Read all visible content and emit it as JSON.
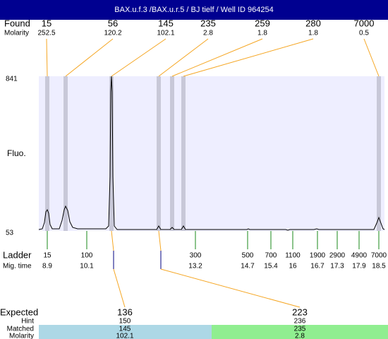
{
  "header": {
    "title": "BAX.u.f.3 /BAX.u.r.5 / BJ tielf / Well ID 964254"
  },
  "found": {
    "label": "Found",
    "sublabel": "Molarity",
    "peaks": [
      {
        "size": "15",
        "molarity": "252.5"
      },
      {
        "size": "56",
        "molarity": "120.2"
      },
      {
        "size": "145",
        "molarity": "102.1"
      },
      {
        "size": "235",
        "molarity": "2.8"
      },
      {
        "size": "259",
        "molarity": "1.8"
      },
      {
        "size": "280",
        "molarity": "1.8"
      },
      {
        "size": "7000",
        "molarity": "0.5"
      }
    ]
  },
  "plot": {
    "ylabel": "Fluo.",
    "ymax": "841",
    "ymin": "53"
  },
  "ladder": {
    "label": "Ladder",
    "sublabel": "Mig. time",
    "items": [
      {
        "size": "15",
        "time": "8.9"
      },
      {
        "size": "100",
        "time": "10.1"
      },
      {
        "size": "300",
        "time": "13.2"
      },
      {
        "size": "500",
        "time": "14.7"
      },
      {
        "size": "700",
        "time": "15.4"
      },
      {
        "size": "1100",
        "time": "16"
      },
      {
        "size": "1900",
        "time": "16.7"
      },
      {
        "size": "2900",
        "time": "17.3"
      },
      {
        "size": "4900",
        "time": "17.9"
      },
      {
        "size": "7000",
        "time": "18.5"
      }
    ]
  },
  "expected": {
    "label": "Expected",
    "hint_label": "Hint",
    "matched_label": "Matched",
    "molarity_label": "Molarity",
    "columns": [
      {
        "value": "136",
        "hint": "150",
        "matched": "145",
        "molarity": "102.1"
      },
      {
        "value": "223",
        "hint": "236",
        "matched": "235",
        "molarity": "2.8"
      }
    ]
  }
}
